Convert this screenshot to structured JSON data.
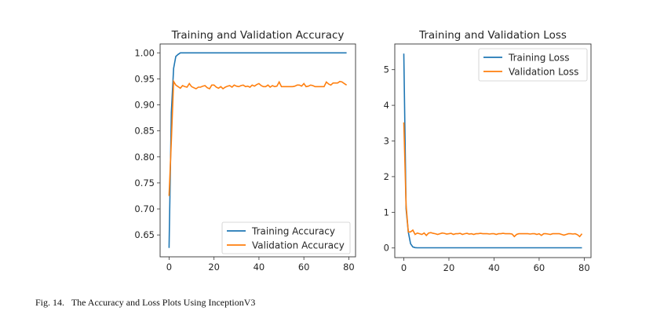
{
  "caption": {
    "label": "Fig. 14.",
    "text": "The Accuracy and Loss Plots Using InceptionV3"
  },
  "colors": {
    "training": "#1f77b4",
    "validation": "#ff7f0e"
  },
  "chart_data": [
    {
      "type": "line",
      "title": "Training and Validation Accuracy",
      "xlabel": "",
      "ylabel": "",
      "xlim": [
        -4,
        83
      ],
      "ylim": [
        0.608,
        1.017
      ],
      "xticks": [
        0,
        20,
        40,
        60,
        80
      ],
      "xtick_labels": [
        "0",
        "20",
        "40",
        "60",
        "80"
      ],
      "yticks": [
        0.65,
        0.7,
        0.75,
        0.8,
        0.85,
        0.9,
        0.95,
        1.0
      ],
      "ytick_labels": [
        "0.65",
        "0.70",
        "0.75",
        "0.80",
        "0.85",
        "0.90",
        "0.95",
        "1.00"
      ],
      "legend_position": "lower-right",
      "series": [
        {
          "name": "Training Accuracy",
          "color": "#1f77b4",
          "values": [
            0.625,
            0.885,
            0.97,
            0.993,
            0.997,
            1.0,
            1.0,
            1.0,
            1.0,
            1.0,
            1.0,
            1.0,
            1.0,
            1.0,
            1.0,
            1.0,
            1.0,
            1.0,
            1.0,
            1.0,
            1.0,
            1.0,
            1.0,
            1.0,
            1.0,
            1.0,
            1.0,
            1.0,
            1.0,
            1.0,
            1.0,
            1.0,
            1.0,
            1.0,
            1.0,
            1.0,
            1.0,
            1.0,
            1.0,
            1.0,
            1.0,
            1.0,
            1.0,
            1.0,
            1.0,
            1.0,
            1.0,
            1.0,
            1.0,
            1.0,
            1.0,
            1.0,
            1.0,
            1.0,
            1.0,
            1.0,
            1.0,
            1.0,
            1.0,
            1.0,
            1.0,
            1.0,
            1.0,
            1.0,
            1.0,
            1.0,
            1.0,
            1.0,
            1.0,
            1.0,
            1.0,
            1.0,
            1.0,
            1.0,
            1.0,
            1.0,
            1.0,
            1.0,
            1.0,
            1.0
          ]
        },
        {
          "name": "Validation Accuracy",
          "color": "#ff7f0e",
          "values": [
            0.725,
            0.83,
            0.945,
            0.938,
            0.935,
            0.932,
            0.937,
            0.935,
            0.934,
            0.941,
            0.935,
            0.933,
            0.931,
            0.934,
            0.934,
            0.936,
            0.937,
            0.933,
            0.931,
            0.938,
            0.938,
            0.934,
            0.932,
            0.935,
            0.931,
            0.934,
            0.936,
            0.937,
            0.934,
            0.938,
            0.936,
            0.935,
            0.937,
            0.938,
            0.935,
            0.936,
            0.934,
            0.938,
            0.936,
            0.939,
            0.941,
            0.937,
            0.935,
            0.935,
            0.938,
            0.934,
            0.937,
            0.935,
            0.936,
            0.944,
            0.935,
            0.935,
            0.935,
            0.935,
            0.935,
            0.935,
            0.936,
            0.938,
            0.938,
            0.936,
            0.941,
            0.935,
            0.936,
            0.938,
            0.937,
            0.935,
            0.935,
            0.935,
            0.935,
            0.935,
            0.944,
            0.94,
            0.938,
            0.942,
            0.942,
            0.942,
            0.945,
            0.944,
            0.941,
            0.938
          ]
        }
      ]
    },
    {
      "type": "line",
      "title": "Training and Validation Loss",
      "xlabel": "",
      "ylabel": "",
      "xlim": [
        -4,
        83
      ],
      "ylim": [
        -0.27,
        5.72
      ],
      "xticks": [
        0,
        20,
        40,
        60,
        80
      ],
      "xtick_labels": [
        "0",
        "20",
        "40",
        "60",
        "80"
      ],
      "yticks": [
        0,
        1,
        2,
        3,
        4,
        5
      ],
      "ytick_labels": [
        "0",
        "1",
        "2",
        "3",
        "4",
        "5"
      ],
      "legend_position": "upper-right",
      "series": [
        {
          "name": "Training Loss",
          "color": "#1f77b4",
          "values": [
            5.45,
            1.1,
            0.45,
            0.12,
            0.03,
            0.01,
            0.005,
            0.005,
            0.005,
            0.005,
            0.005,
            0.005,
            0.005,
            0.005,
            0.005,
            0.005,
            0.005,
            0.005,
            0.005,
            0.005,
            0.005,
            0.005,
            0.005,
            0.005,
            0.005,
            0.005,
            0.005,
            0.005,
            0.005,
            0.005,
            0.005,
            0.005,
            0.005,
            0.005,
            0.005,
            0.005,
            0.005,
            0.005,
            0.005,
            0.005,
            0.005,
            0.005,
            0.005,
            0.005,
            0.005,
            0.005,
            0.005,
            0.005,
            0.005,
            0.005,
            0.005,
            0.005,
            0.005,
            0.005,
            0.005,
            0.005,
            0.005,
            0.005,
            0.005,
            0.005,
            0.005,
            0.005,
            0.005,
            0.005,
            0.005,
            0.005,
            0.005,
            0.005,
            0.005,
            0.005,
            0.005,
            0.005,
            0.005,
            0.005,
            0.005,
            0.005,
            0.005,
            0.005,
            0.005,
            0.005
          ]
        },
        {
          "name": "Validation Loss",
          "color": "#ff7f0e",
          "values": [
            3.52,
            1.2,
            0.45,
            0.45,
            0.5,
            0.38,
            0.42,
            0.4,
            0.38,
            0.42,
            0.35,
            0.42,
            0.43,
            0.41,
            0.4,
            0.38,
            0.4,
            0.42,
            0.41,
            0.39,
            0.4,
            0.41,
            0.38,
            0.4,
            0.4,
            0.41,
            0.38,
            0.4,
            0.41,
            0.39,
            0.4,
            0.38,
            0.4,
            0.4,
            0.41,
            0.4,
            0.4,
            0.4,
            0.39,
            0.4,
            0.4,
            0.38,
            0.4,
            0.4,
            0.41,
            0.4,
            0.4,
            0.4,
            0.39,
            0.32,
            0.38,
            0.4,
            0.4,
            0.4,
            0.4,
            0.4,
            0.39,
            0.4,
            0.4,
            0.38,
            0.4,
            0.35,
            0.4,
            0.4,
            0.39,
            0.38,
            0.4,
            0.4,
            0.4,
            0.4,
            0.38,
            0.36,
            0.38,
            0.4,
            0.4,
            0.39,
            0.4,
            0.37,
            0.32,
            0.4
          ]
        }
      ]
    }
  ]
}
